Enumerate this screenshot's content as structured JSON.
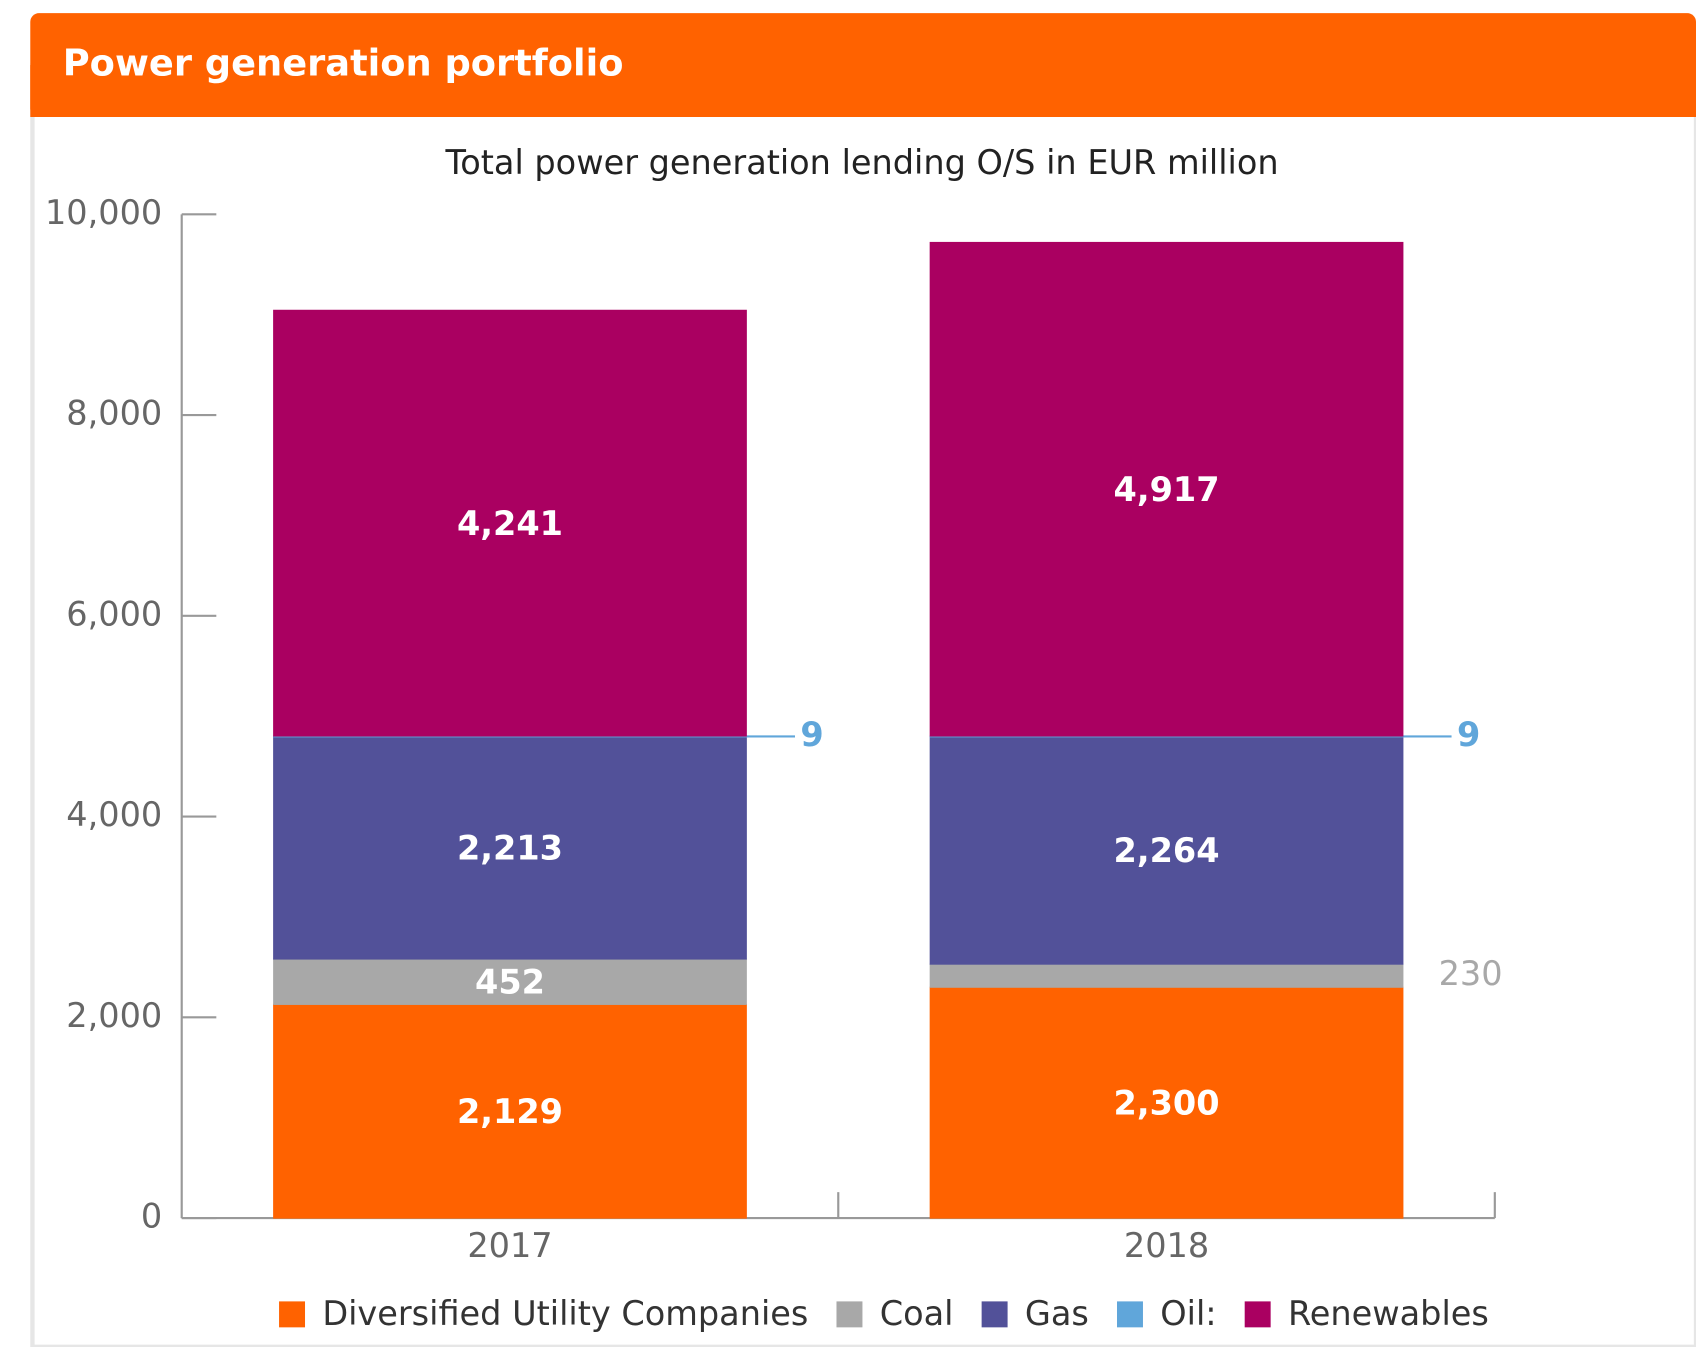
{
  "chart_data": {
    "type": "stacked_bar",
    "title": "Power generation portfolio",
    "subtitle": "Total power generation lending O/S in EUR million",
    "categories": [
      "2017",
      "2018"
    ],
    "series": [
      {
        "name": "Diversified Utility Companies",
        "color": "#ff6200",
        "values": [
          2129,
          2300
        ],
        "value_labels": [
          "2,129",
          "2,300"
        ]
      },
      {
        "name": "Coal",
        "color": "#a8a8a8",
        "values": [
          452,
          230
        ],
        "value_labels": [
          "452",
          "230"
        ]
      },
      {
        "name": "Gas",
        "color": "#525199",
        "values": [
          2213,
          2264
        ],
        "value_labels": [
          "2,213",
          "2,264"
        ]
      },
      {
        "name": "Oil:",
        "color": "#60a6da",
        "values": [
          9,
          9
        ],
        "value_labels": [
          "9",
          "9"
        ]
      },
      {
        "name": "Renewables",
        "color": "#aa0061",
        "values": [
          4241,
          4917
        ],
        "value_labels": [
          "4,241",
          "4,917"
        ]
      }
    ],
    "ylim": [
      0,
      10000
    ],
    "yticks": [
      0,
      {
        "value": 2000,
        "label": "2,000"
      },
      {
        "value": 4000,
        "label": "4,000"
      },
      {
        "value": 6000,
        "label": "6,000"
      },
      {
        "value": 8000,
        "label": "8,000"
      },
      {
        "value": 10000,
        "label": "10,000"
      }
    ],
    "header_color": "#ff6200"
  }
}
